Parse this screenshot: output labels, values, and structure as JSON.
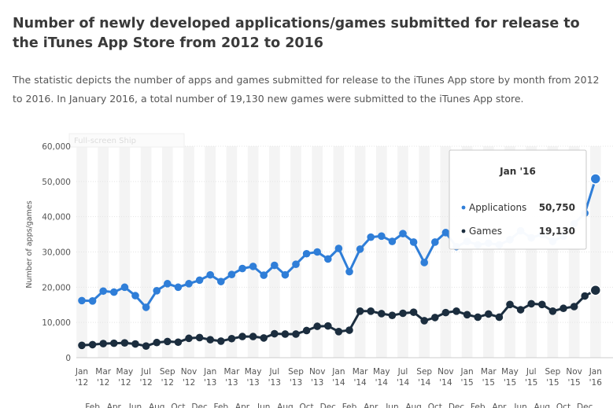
{
  "title": "Number of newly developed applications/games submitted for release to the iTunes App Store from 2012 to 2016",
  "description": "The statistic depicts the number of apps and games submitted for release to the iTunes App store by month from 2012 to 2016. In January 2016, a total number of 19,130 new games were submitted to the iTunes App store.",
  "ghost_button": "Full-screen Ship",
  "chart_data": {
    "type": "line",
    "ylabel": "Number of apps/games",
    "ylim": [
      0,
      60000
    ],
    "yticks": [
      0,
      10000,
      20000,
      30000,
      40000,
      50000,
      60000
    ],
    "ytick_labels": [
      "0",
      "10,000",
      "20,000",
      "30,000",
      "40,000",
      "50,000",
      "60,000"
    ],
    "x": [
      "Jan '12",
      "Feb '12",
      "Mar '12",
      "Apr '12",
      "May '12",
      "Jun '12",
      "Jul '12",
      "Aug '12",
      "Sep '12",
      "Oct '12",
      "Nov '12",
      "Dec '12",
      "Jan '13",
      "Feb '13",
      "Mar '13",
      "Apr '13",
      "May '13",
      "Jun '13",
      "Jul '13",
      "Aug '13",
      "Sep '13",
      "Oct '13",
      "Nov '13",
      "Dec '13",
      "Jan '14",
      "Feb '14",
      "Mar '14",
      "Apr '14",
      "May '14",
      "Jun '14",
      "Jul '14",
      "Aug '14",
      "Sep '14",
      "Oct '14",
      "Nov '14",
      "Dec '14",
      "Jan '15",
      "Feb '15",
      "Mar '15",
      "Apr '15",
      "May '15",
      "Jun '15",
      "Jul '15",
      "Aug '15",
      "Sep '15",
      "Oct '15",
      "Nov '15",
      "Dec '15",
      "Jan '16"
    ],
    "xtick_rows": {
      "top": [
        [
          "Jan",
          "'12"
        ],
        [
          "Mar",
          "'12"
        ],
        [
          "May",
          "'12"
        ],
        [
          "Jul",
          "'12"
        ],
        [
          "Sep",
          "'12"
        ],
        [
          "Nov",
          "'12"
        ],
        [
          "Jan",
          "'13"
        ],
        [
          "Mar",
          "'13"
        ],
        [
          "May",
          "'13"
        ],
        [
          "Jul",
          "'13"
        ],
        [
          "Sep",
          "'13"
        ],
        [
          "Nov",
          "'13"
        ],
        [
          "Jan",
          "'14"
        ],
        [
          "Mar",
          "'14"
        ],
        [
          "May",
          "'14"
        ],
        [
          "Jul",
          "'14"
        ],
        [
          "Sep",
          "'14"
        ],
        [
          "Nov",
          "'14"
        ],
        [
          "Jan",
          "'15"
        ],
        [
          "Mar",
          "'15"
        ],
        [
          "May",
          "'15"
        ],
        [
          "Jul",
          "'15"
        ],
        [
          "Sep",
          "'15"
        ],
        [
          "Nov",
          "'15"
        ],
        [
          "Jan",
          "'16"
        ]
      ],
      "bottom": [
        "Feb",
        "Apr",
        "Jun",
        "Aug",
        "Oct",
        "Dec",
        "Feb",
        "Apr",
        "Jun",
        "Aug",
        "Oct",
        "Dec",
        "Feb",
        "Apr",
        "Jun",
        "Aug",
        "Oct",
        "Dec",
        "Feb",
        "Apr",
        "Jun",
        "Aug",
        "Oct",
        "Dec"
      ]
    },
    "series": [
      {
        "name": "Applications",
        "color": "#2f7ed8",
        "values": [
          16200,
          16100,
          18900,
          18600,
          20000,
          17600,
          14300,
          19000,
          21000,
          20000,
          21000,
          22000,
          23500,
          21600,
          23600,
          25300,
          25900,
          23400,
          26200,
          23500,
          26500,
          29500,
          30000,
          28000,
          31000,
          24400,
          30800,
          34200,
          34500,
          33000,
          35200,
          32800,
          27000,
          32800,
          35500,
          31500,
          33000,
          32000,
          32500,
          32000,
          33500,
          36000,
          34000,
          35000,
          33000,
          34500,
          38000,
          41000,
          50750
        ]
      },
      {
        "name": "Games",
        "color": "#1b2d3e",
        "values": [
          3500,
          3700,
          4000,
          4100,
          4200,
          3900,
          3300,
          4300,
          4600,
          4400,
          5500,
          5700,
          5100,
          4700,
          5400,
          6000,
          6000,
          5600,
          6800,
          6700,
          6700,
          7700,
          8900,
          9000,
          7400,
          7800,
          13200,
          13200,
          12500,
          12000,
          12600,
          12900,
          10500,
          11400,
          12800,
          13200,
          12200,
          11500,
          12400,
          11500,
          15100,
          13600,
          15300,
          15100,
          13200,
          14000,
          14500,
          17500,
          19130
        ]
      }
    ],
    "tooltip": {
      "title": "Jan '16",
      "rows": [
        {
          "name": "Applications",
          "value": "50,750",
          "color": "#2f7ed8"
        },
        {
          "name": "Games",
          "value": "19,130",
          "color": "#1b2d3e"
        }
      ]
    }
  }
}
